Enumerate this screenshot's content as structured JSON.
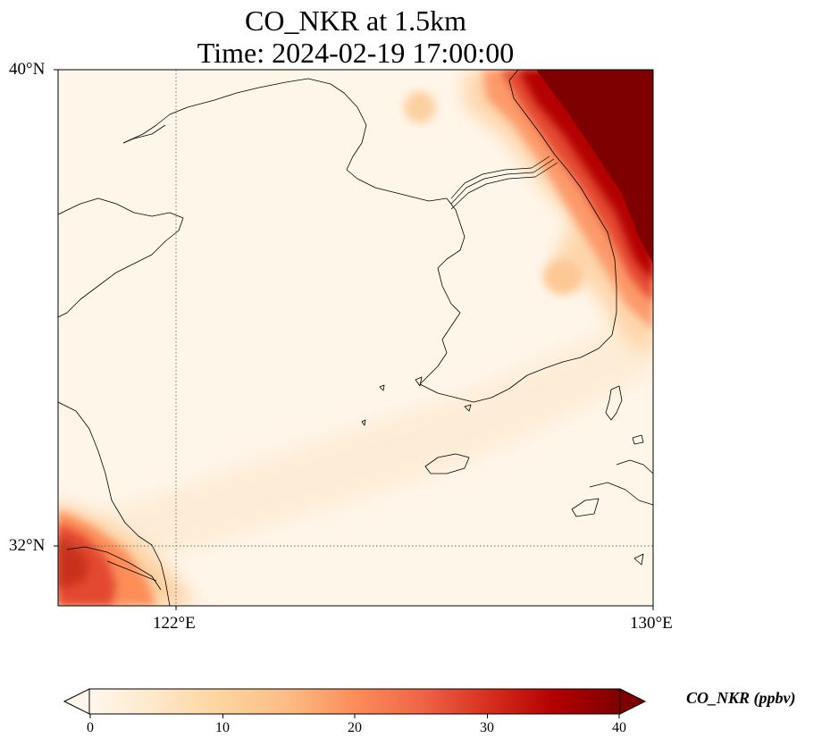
{
  "title": {
    "line1": "CO_NKR at 1.5km",
    "line2": "Time: 2024-02-19 17:00:00"
  },
  "axes": {
    "lat_ticks": [
      "40°N",
      "32°N"
    ],
    "lon_ticks": [
      "122°E",
      "130°E"
    ],
    "lat_range": [
      31,
      40
    ],
    "lon_range": [
      120,
      130
    ],
    "gridlines": [
      {
        "lon": 122
      },
      {
        "lat": 32
      }
    ]
  },
  "colorbar": {
    "label": "CO_NKR (ppbv)",
    "ticks": [
      "0",
      "10",
      "20",
      "30",
      "40"
    ],
    "range": [
      0,
      40
    ],
    "extend": "both",
    "colormap": "OrRd",
    "colors": [
      "#fff7ec",
      "#fee8c8",
      "#fdd49e",
      "#fdbb84",
      "#fc8d59",
      "#ef6548",
      "#d7301f",
      "#b30000",
      "#7f0000"
    ]
  }
}
